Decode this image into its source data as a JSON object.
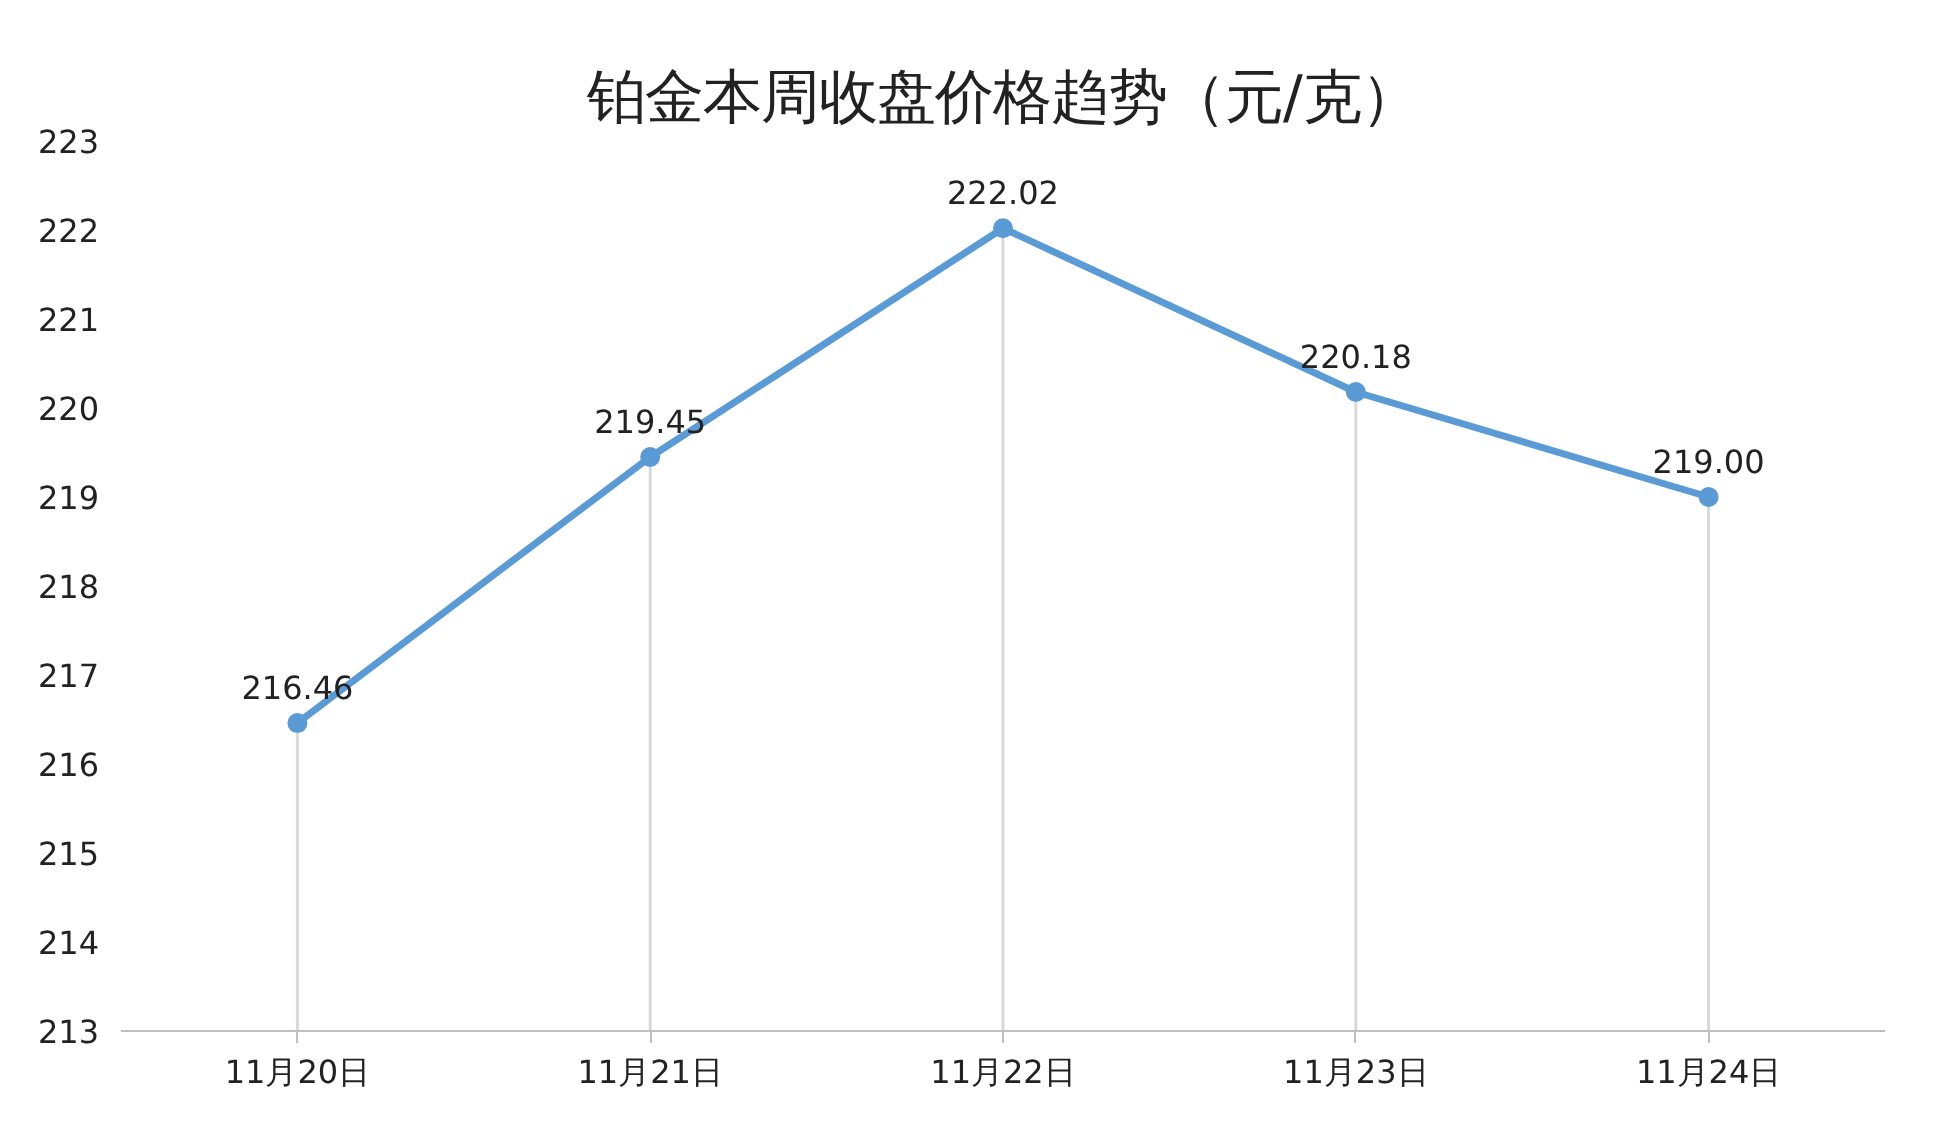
{
  "chart_data": {
    "type": "line",
    "title": "铂金本周收盘价格趋势（元/克）",
    "categories": [
      "11月20日",
      "11月21日",
      "11月22日",
      "11月23日",
      "11月24日"
    ],
    "series": [
      {
        "color": "#5b9bd5",
        "values": [
          216.46,
          219.45,
          222.02,
          220.18,
          219.0
        ],
        "value_labels": [
          "216.46",
          "219.45",
          "222.02",
          "220.18",
          "219.00"
        ]
      }
    ],
    "ylim": [
      213,
      223
    ],
    "yticks": [
      213,
      214,
      215,
      216,
      217,
      218,
      219,
      220,
      221,
      222,
      223
    ],
    "grid": "x",
    "marker": "circle",
    "line_style": "solid"
  }
}
